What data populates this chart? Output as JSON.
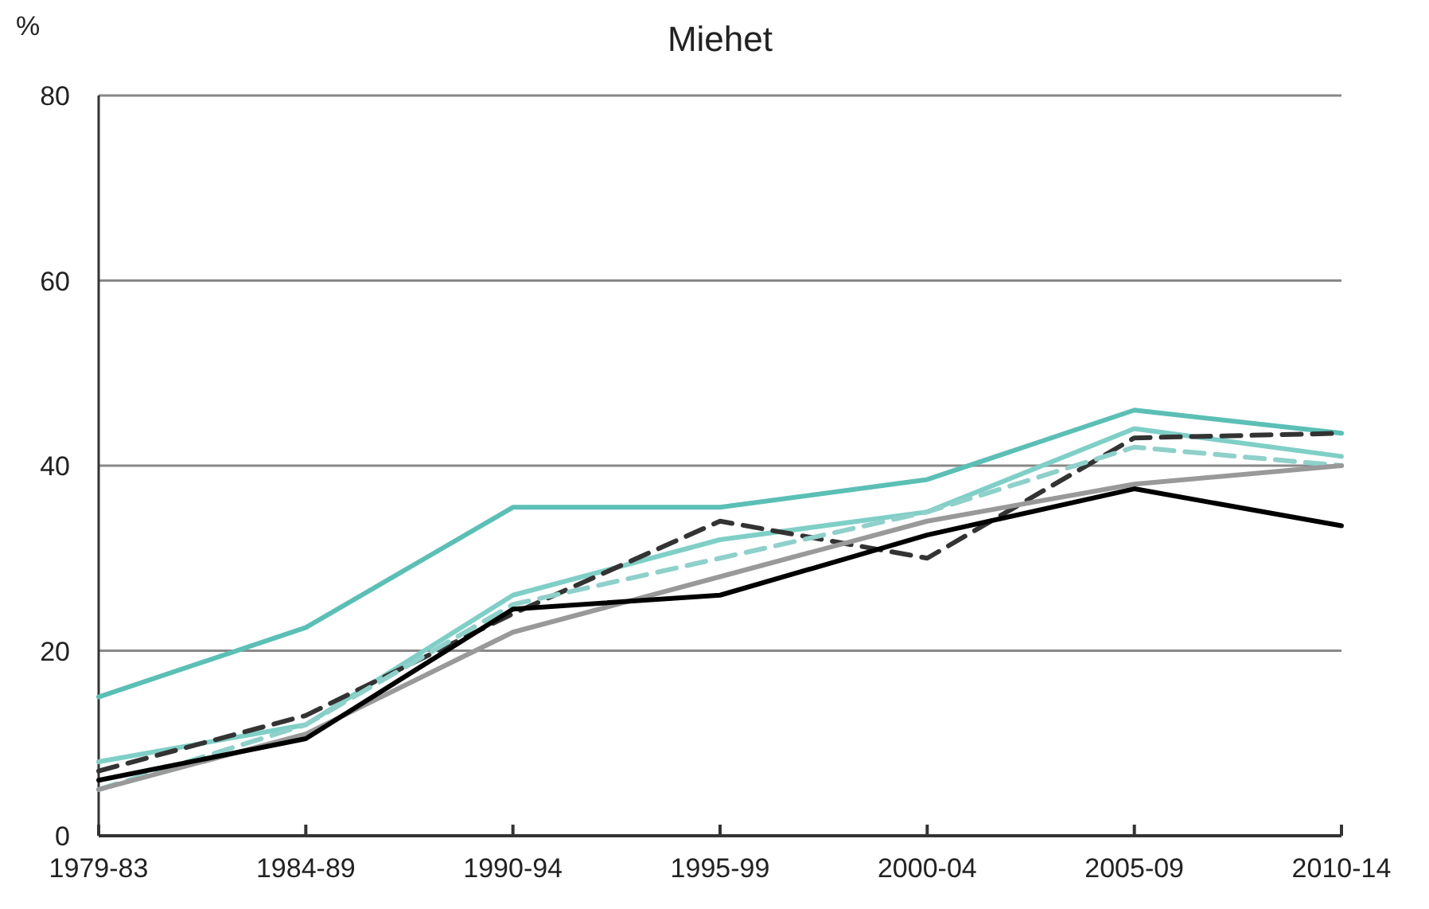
{
  "chart_data": {
    "type": "line",
    "title": "Miehet",
    "ylabel": "%",
    "categories": [
      "1979-83",
      "1984-89",
      "1990-94",
      "1995-99",
      "2000-04",
      "2005-09",
      "2010-14"
    ],
    "ylim": [
      0,
      80
    ],
    "yticks": [
      0,
      20,
      40,
      60,
      80
    ],
    "grid": "y",
    "series": [
      {
        "color": "#5bbfb5",
        "line_style": "solid",
        "values": [
          15,
          22.5,
          35.5,
          35.5,
          38.5,
          46,
          43.5
        ]
      },
      {
        "color": "#7fcfc7",
        "line_style": "solid",
        "values": [
          8,
          12,
          26,
          32,
          35,
          44,
          41
        ]
      },
      {
        "color": "#333333",
        "line_style": "dashed",
        "values": [
          7,
          13,
          24,
          34,
          30,
          43,
          43.5
        ]
      },
      {
        "color": "#8fd0ca",
        "line_style": "dashed",
        "values": [
          5,
          12,
          25,
          30,
          35,
          42,
          40
        ]
      },
      {
        "color": "#999999",
        "line_style": "solid",
        "values": [
          5,
          11,
          22,
          28,
          34,
          38,
          40
        ]
      },
      {
        "color": "#000000",
        "line_style": "solid",
        "values": [
          6,
          10.5,
          24.5,
          26,
          32.5,
          37.5,
          33.5
        ]
      }
    ]
  }
}
